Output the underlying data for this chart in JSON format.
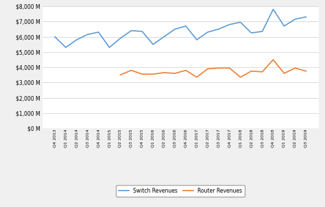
{
  "labels": [
    "Q4 2013",
    "Q1 2014",
    "Q2 2014",
    "Q3 2014",
    "Q4 2014",
    "Q1 2015",
    "Q2 2015",
    "Q3 2015",
    "Q4 2015",
    "Q1 2016",
    "Q2 2016",
    "Q3 2016",
    "Q4 2016",
    "Q1 2017",
    "Q2 2017",
    "Q3 2017",
    "Q4 2017",
    "Q1 2018",
    "Q2 2018",
    "Q3 2018",
    "Q4 2018",
    "Q1 2019",
    "Q2 2019",
    "Q3 2019"
  ],
  "switch_revenues": [
    6000,
    5300,
    5800,
    6150,
    6300,
    5300,
    5900,
    6400,
    6350,
    5500,
    6000,
    6500,
    6700,
    5800,
    6300,
    6500,
    6800,
    6950,
    6250,
    6350,
    7800,
    6700,
    7150,
    7300
  ],
  "router_revenues": [
    null,
    null,
    null,
    null,
    null,
    null,
    3500,
    3800,
    3550,
    3550,
    3650,
    3600,
    3800,
    3350,
    3900,
    3950,
    3950,
    3350,
    3750,
    3700,
    4500,
    3600,
    3950,
    3750
  ],
  "switch_color": "#5b9bd5",
  "router_color": "#ed7d31",
  "ylim": [
    0,
    8000
  ],
  "ytick_step": 1000,
  "background_color": "#f0f0f0",
  "plot_bg_color": "#ffffff",
  "legend_switch": "Switch Revenues",
  "legend_router": "Router Revenues",
  "line_width": 1.2
}
